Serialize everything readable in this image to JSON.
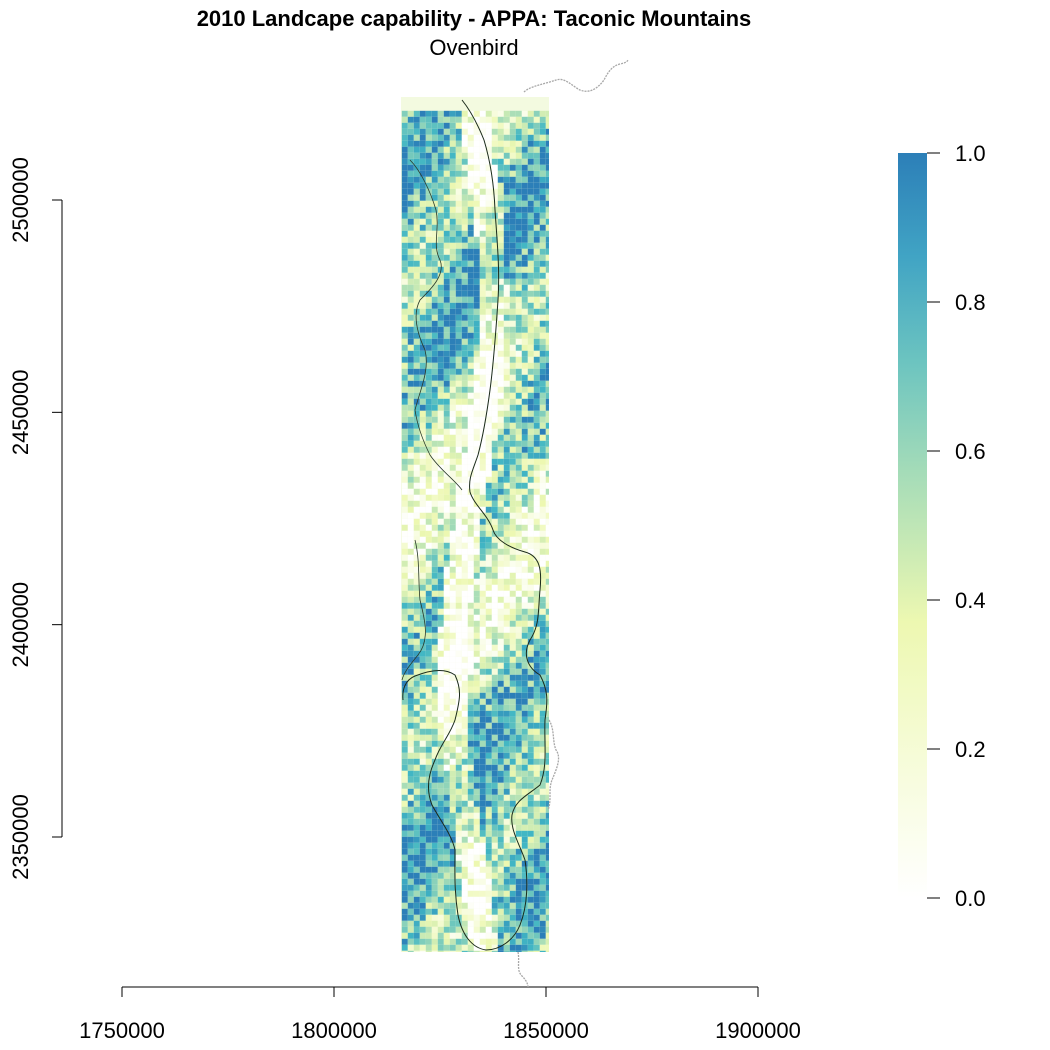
{
  "title": "2010 Landcape capability - APPA: Taconic Mountains",
  "subtitle": "Ovenbird",
  "chart_data": {
    "type": "heatmap",
    "title": "2010 Landcape capability - APPA: Taconic Mountains",
    "subtitle": "Ovenbird",
    "x_axis": {
      "ticks": [
        1750000,
        1800000,
        1850000,
        1900000
      ],
      "tick_labels": [
        "1750000",
        "1800000",
        "1850000",
        "1900000"
      ]
    },
    "y_axis": {
      "ticks": [
        2350000,
        2400000,
        2450000,
        2500000
      ],
      "tick_labels": [
        "2350000",
        "2400000",
        "2450000",
        "2500000"
      ]
    },
    "raster_extent": {
      "x": [
        1816000,
        1851000
      ],
      "y": [
        2320000,
        2521000
      ]
    },
    "legend": {
      "placement": "right",
      "range": [
        0,
        1
      ],
      "ticks": [
        0.0,
        0.2,
        0.4,
        0.6,
        0.8,
        1.0
      ],
      "tick_labels": [
        "0.0",
        "0.2",
        "0.4",
        "0.6",
        "0.8",
        "1.0"
      ],
      "colors": [
        "#ffffff",
        "#f7fcdc",
        "#edf8b1",
        "#c7e9b4",
        "#7fcdbb",
        "#41b6c4",
        "#2c7fb8"
      ]
    },
    "grid": false
  }
}
